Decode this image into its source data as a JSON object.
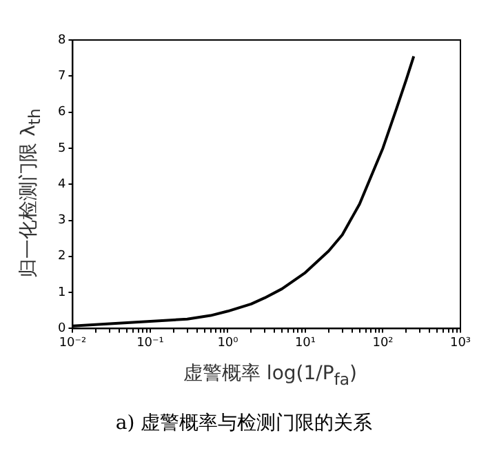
{
  "chart_data": {
    "type": "line",
    "xlabel": "虚警概率 log(1/P$_{fa}$)",
    "ylabel": "归一化检测门限 λ$_{th}$",
    "annotations": [
      "a) 虚警概率与检测门限的关系"
    ],
    "x": [
      0.01,
      0.03,
      0.1,
      0.3,
      0.6,
      1,
      2,
      3,
      5,
      10,
      20,
      30,
      50,
      100,
      150,
      200,
      250
    ],
    "series": [
      {
        "color": "#000000",
        "values": [
          0.07,
          0.13,
          0.2,
          0.26,
          0.36,
          0.48,
          0.68,
          0.85,
          1.1,
          1.55,
          2.15,
          2.6,
          3.45,
          5.0,
          6.1,
          6.9,
          7.55
        ]
      }
    ],
    "xlim": [
      0.01,
      1000
    ],
    "ylim": [
      0,
      8
    ],
    "xticks": [
      {
        "value": 0.01,
        "label": "10⁻²"
      },
      {
        "value": 0.02,
        "label": null
      },
      {
        "value": 0.03,
        "label": null
      },
      {
        "value": 0.04,
        "label": null
      },
      {
        "value": 0.05,
        "label": null
      },
      {
        "value": 0.06,
        "label": null
      },
      {
        "value": 0.07,
        "label": null
      },
      {
        "value": 0.08,
        "label": null
      },
      {
        "value": 0.09,
        "label": null
      },
      {
        "value": 0.1,
        "label": "10⁻¹"
      },
      {
        "value": 0.2,
        "label": null
      },
      {
        "value": 0.3,
        "label": null
      },
      {
        "value": 0.4,
        "label": null
      },
      {
        "value": 0.5,
        "label": null
      },
      {
        "value": 0.6,
        "label": null
      },
      {
        "value": 0.7,
        "label": null
      },
      {
        "value": 0.8,
        "label": null
      },
      {
        "value": 0.9,
        "label": null
      },
      {
        "value": 1,
        "label": "10⁰"
      },
      {
        "value": 2,
        "label": null
      },
      {
        "value": 3,
        "label": null
      },
      {
        "value": 4,
        "label": null
      },
      {
        "value": 5,
        "label": null
      },
      {
        "value": 6,
        "label": null
      },
      {
        "value": 7,
        "label": null
      },
      {
        "value": 8,
        "label": null
      },
      {
        "value": 9,
        "label": null
      },
      {
        "value": 10,
        "label": "10¹"
      },
      {
        "value": 20,
        "label": null
      },
      {
        "value": 30,
        "label": null
      },
      {
        "value": 40,
        "label": null
      },
      {
        "value": 50,
        "label": null
      },
      {
        "value": 60,
        "label": null
      },
      {
        "value": 70,
        "label": null
      },
      {
        "value": 80,
        "label": null
      },
      {
        "value": 90,
        "label": null
      },
      {
        "value": 100,
        "label": "10²"
      },
      {
        "value": 200,
        "label": null
      },
      {
        "value": 300,
        "label": null
      },
      {
        "value": 400,
        "label": null
      },
      {
        "value": 500,
        "label": null
      },
      {
        "value": 600,
        "label": null
      },
      {
        "value": 700,
        "label": null
      },
      {
        "value": 800,
        "label": null
      },
      {
        "value": 900,
        "label": null
      },
      {
        "value": 1000,
        "label": "10³"
      }
    ],
    "yticks": [
      0,
      1,
      2,
      3,
      4,
      5,
      6,
      7,
      8
    ],
    "log": "x",
    "grid": false,
    "legend": false,
    "marker": "none",
    "line_style": "solid"
  }
}
